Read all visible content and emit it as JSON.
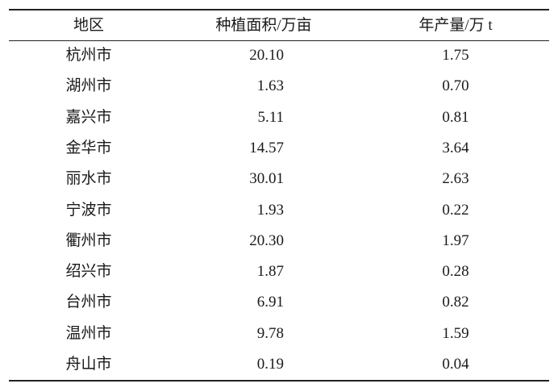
{
  "table": {
    "header": [
      "地区",
      "种植面积/万亩",
      "年产量/万 t"
    ],
    "rows": [
      [
        "杭州市",
        "20.10",
        "1.75"
      ],
      [
        "湖州市",
        "1.63",
        "0.70"
      ],
      [
        "嘉兴市",
        "5.11",
        "0.81"
      ],
      [
        "金华市",
        "14.57",
        "3.64"
      ],
      [
        "丽水市",
        "30.01",
        "2.63"
      ],
      [
        "宁波市",
        "1.93",
        "0.22"
      ],
      [
        "衢州市",
        "20.30",
        "1.97"
      ],
      [
        "绍兴市",
        "1.87",
        "0.28"
      ],
      [
        "台州市",
        "6.91",
        "0.82"
      ],
      [
        "温州市",
        "9.78",
        "1.59"
      ],
      [
        "舟山市",
        "0.19",
        "0.04"
      ]
    ]
  }
}
